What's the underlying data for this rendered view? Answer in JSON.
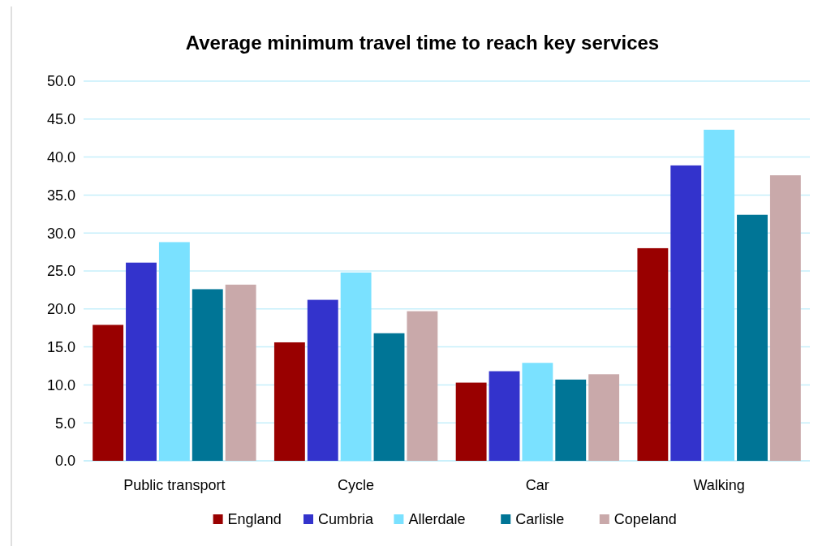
{
  "chart_data": {
    "type": "bar",
    "title": "Average minimum travel time to reach key services",
    "categories": [
      "Public transport",
      "Cycle",
      "Car",
      "Walking"
    ],
    "series": [
      {
        "name": "England",
        "color": "#990000",
        "values": [
          17.9,
          15.6,
          10.3,
          28.0
        ]
      },
      {
        "name": "Cumbria",
        "color": "#3333cc",
        "values": [
          26.1,
          21.2,
          11.8,
          38.9
        ]
      },
      {
        "name": "Allerdale",
        "color": "#7ae1ff",
        "values": [
          28.8,
          24.8,
          12.9,
          43.6
        ]
      },
      {
        "name": "Carlisle",
        "color": "#007596",
        "values": [
          22.6,
          16.8,
          10.7,
          32.4
        ]
      },
      {
        "name": "Copeland",
        "color": "#c9a9aa",
        "values": [
          23.2,
          19.7,
          11.4,
          37.6
        ]
      }
    ],
    "ylim": [
      0,
      50
    ],
    "yticks": [
      {
        "value": 0,
        "label": "0.0"
      },
      {
        "value": 5,
        "label": "5.0"
      },
      {
        "value": 10,
        "label": "10.0"
      },
      {
        "value": 15,
        "label": "15.0"
      },
      {
        "value": 20,
        "label": "20.0"
      },
      {
        "value": 25,
        "label": "25.0"
      },
      {
        "value": 30,
        "label": "30.0"
      },
      {
        "value": 35,
        "label": "35.0"
      },
      {
        "value": 40,
        "label": "40.0"
      },
      {
        "value": 45,
        "label": "45.0"
      },
      {
        "value": 50,
        "label": "50.0"
      }
    ],
    "grid": true,
    "legend": "bottom"
  }
}
